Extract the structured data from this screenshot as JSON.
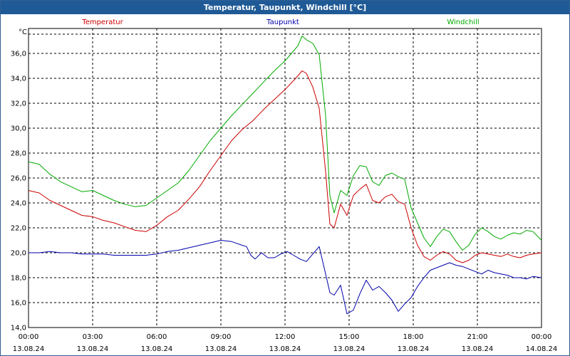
{
  "window": {
    "title": "Temperatur, Taupunkt, Windchill [°C]"
  },
  "colors": {
    "temperatur": "#cc0000",
    "taupunkt": "#0000aa",
    "windchill": "#00aa00",
    "grid": "#000000",
    "titlebar": "#1f5a96"
  },
  "chart_data": {
    "type": "line",
    "title": "Temperatur, Taupunkt, Windchill [°C]",
    "ylabel": "°C",
    "xlabel": "",
    "ylim": [
      14,
      38
    ],
    "xlim": [
      0,
      24
    ],
    "grid": true,
    "y_ticks": [
      "14,0",
      "16,0",
      "18,0",
      "20,0",
      "22,0",
      "24,0",
      "26,0",
      "28,0",
      "30,0",
      "32,0",
      "34,0",
      "36,0"
    ],
    "x_ticks": [
      {
        "time": "00:00",
        "date": "13.08.24"
      },
      {
        "time": "03:00",
        "date": "13.08.24"
      },
      {
        "time": "06:00",
        "date": "13.08.24"
      },
      {
        "time": "09:00",
        "date": "13.08.24"
      },
      {
        "time": "12:00",
        "date": "13.08.24"
      },
      {
        "time": "15:00",
        "date": "13.08.24"
      },
      {
        "time": "18:00",
        "date": "13.08.24"
      },
      {
        "time": "21:00",
        "date": "13.08.24"
      },
      {
        "time": "00:00",
        "date": "14.08.24"
      }
    ],
    "series": [
      {
        "name": "Temperatur",
        "x": [
          0,
          0.5,
          1,
          1.5,
          2,
          2.5,
          3,
          3.5,
          4,
          4.5,
          5,
          5.5,
          6,
          6.5,
          7,
          7.5,
          8,
          8.5,
          9,
          9.5,
          10,
          10.5,
          11,
          11.5,
          12,
          12.5,
          12.8,
          13,
          13.3,
          13.6,
          13.9,
          14.1,
          14.3,
          14.6,
          14.9,
          15.2,
          15.5,
          15.8,
          16.1,
          16.4,
          16.7,
          17,
          17.3,
          17.6,
          17.9,
          18.2,
          18.5,
          18.8,
          19.1,
          19.4,
          19.7,
          20,
          20.3,
          20.6,
          20.9,
          21.2,
          21.5,
          21.8,
          22.1,
          22.4,
          22.7,
          23,
          23.3,
          23.6,
          24
        ],
        "values": [
          25.0,
          24.8,
          24.2,
          23.8,
          23.4,
          23.0,
          22.9,
          22.6,
          22.4,
          22.1,
          21.8,
          21.7,
          22.2,
          22.9,
          23.4,
          24.3,
          25.3,
          26.6,
          27.8,
          29.0,
          29.9,
          30.6,
          31.5,
          32.3,
          33.1,
          34.0,
          34.6,
          34.4,
          33.3,
          31.6,
          26.5,
          22.3,
          22.0,
          23.9,
          23.0,
          24.6,
          25.1,
          25.5,
          24.2,
          24.0,
          24.5,
          24.7,
          24.1,
          23.9,
          22.0,
          20.6,
          19.7,
          19.4,
          19.8,
          20.1,
          19.9,
          19.4,
          19.2,
          19.4,
          19.8,
          20.0,
          19.9,
          19.8,
          19.7,
          19.9,
          19.7,
          19.6,
          19.8,
          19.9,
          20.0
        ]
      },
      {
        "name": "Taupunkt",
        "x": [
          0,
          0.5,
          1,
          1.5,
          2,
          2.5,
          3,
          3.5,
          4,
          4.5,
          5,
          5.5,
          6,
          6.5,
          7,
          7.5,
          8,
          8.5,
          9,
          9.5,
          10,
          10.2,
          10.4,
          10.6,
          10.9,
          11.2,
          11.5,
          11.8,
          12.1,
          12.4,
          12.7,
          13,
          13.3,
          13.6,
          13.9,
          14.1,
          14.3,
          14.6,
          14.9,
          15.2,
          15.5,
          15.8,
          16.1,
          16.4,
          16.7,
          17,
          17.3,
          17.6,
          17.9,
          18.2,
          18.5,
          18.8,
          19.1,
          19.4,
          19.7,
          20,
          20.3,
          20.6,
          20.9,
          21.2,
          21.5,
          21.8,
          22.1,
          22.4,
          22.7,
          23,
          23.3,
          23.6,
          24
        ],
        "values": [
          20.0,
          20.0,
          20.1,
          20.0,
          20.0,
          19.9,
          19.9,
          19.9,
          19.8,
          19.8,
          19.8,
          19.8,
          19.9,
          20.1,
          20.2,
          20.4,
          20.6,
          20.8,
          21.0,
          20.9,
          20.6,
          20.5,
          19.8,
          19.5,
          20.0,
          19.6,
          19.6,
          19.9,
          20.1,
          19.8,
          19.5,
          19.3,
          19.9,
          20.5,
          18.3,
          16.8,
          16.6,
          17.4,
          15.1,
          15.4,
          16.7,
          17.8,
          17.0,
          17.3,
          16.8,
          16.2,
          15.3,
          15.9,
          16.4,
          17.3,
          18.0,
          18.6,
          18.8,
          19.0,
          19.2,
          19.0,
          18.9,
          18.7,
          18.5,
          18.3,
          18.6,
          18.4,
          18.3,
          18.2,
          18.0,
          18.0,
          17.9,
          18.1,
          18.0
        ]
      },
      {
        "name": "Windchill",
        "x": [
          0,
          0.5,
          1,
          1.5,
          2,
          2.5,
          3,
          3.5,
          4,
          4.5,
          5,
          5.5,
          6,
          6.5,
          7,
          7.5,
          8,
          8.5,
          9,
          9.5,
          10,
          10.5,
          11,
          11.5,
          12,
          12.3,
          12.6,
          12.8,
          13,
          13.3,
          13.6,
          13.9,
          14.1,
          14.3,
          14.6,
          14.9,
          15.2,
          15.5,
          15.8,
          16.1,
          16.4,
          16.7,
          17,
          17.3,
          17.6,
          17.9,
          18.2,
          18.5,
          18.8,
          19.1,
          19.4,
          19.7,
          20,
          20.3,
          20.6,
          20.9,
          21.2,
          21.5,
          21.8,
          22.1,
          22.4,
          22.7,
          23,
          23.3,
          23.6,
          24
        ],
        "values": [
          27.3,
          27.1,
          26.3,
          25.7,
          25.3,
          24.9,
          25.0,
          24.6,
          24.2,
          23.9,
          23.7,
          23.8,
          24.4,
          25.0,
          25.6,
          26.6,
          27.8,
          29.0,
          30.0,
          31.0,
          31.9,
          32.8,
          33.7,
          34.6,
          35.4,
          36.0,
          36.6,
          37.4,
          37.1,
          36.8,
          35.9,
          31.0,
          24.6,
          23.2,
          25.0,
          24.6,
          26.2,
          27.0,
          26.9,
          25.7,
          25.4,
          26.2,
          26.4,
          26.1,
          25.9,
          23.6,
          22.4,
          21.2,
          20.5,
          21.3,
          21.9,
          21.7,
          20.9,
          20.2,
          20.6,
          21.5,
          22.0,
          21.7,
          21.3,
          21.1,
          21.4,
          21.6,
          21.5,
          21.8,
          21.7,
          21.0
        ]
      }
    ]
  }
}
